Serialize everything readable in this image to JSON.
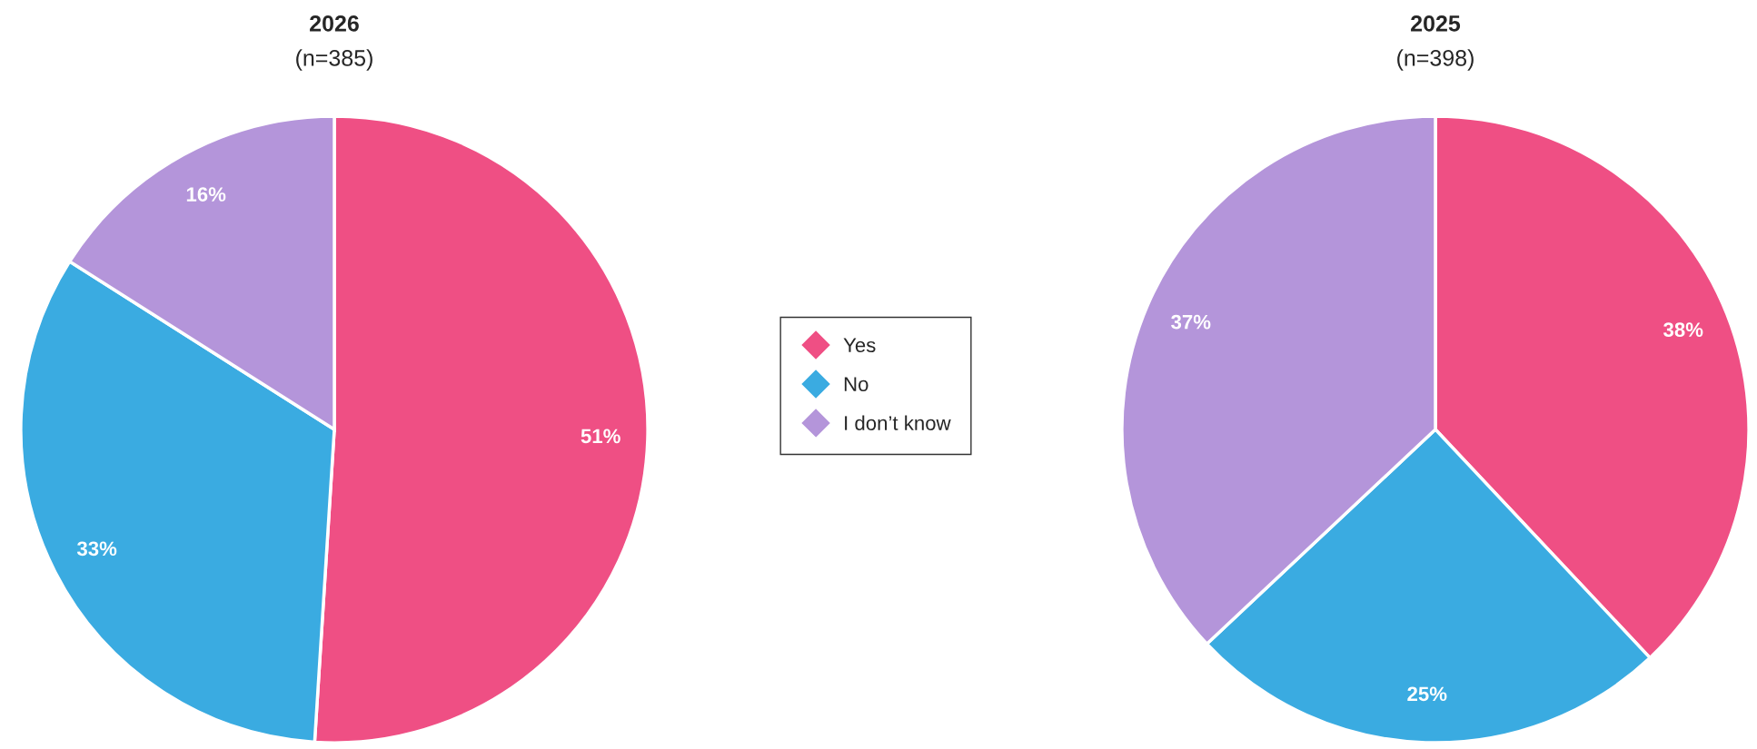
{
  "chart_data": [
    {
      "type": "pie",
      "title": "2026",
      "subtitle": "(n=385)",
      "categories": [
        "Yes",
        "No",
        "I don’t know"
      ],
      "values": [
        51,
        33,
        16
      ],
      "value_labels": [
        "51%",
        "33%",
        "16%"
      ],
      "colors": [
        "#ef4f84",
        "#3aabe1",
        "#b495da"
      ],
      "legend": "right"
    },
    {
      "type": "pie",
      "title": "2025",
      "subtitle": "(n=398)",
      "values": [
        38,
        25,
        37
      ],
      "value_labels": [
        "38%",
        "25%",
        "37%"
      ],
      "colors": [
        "#ef4f84",
        "#3aabe1",
        "#b495da"
      ]
    }
  ]
}
